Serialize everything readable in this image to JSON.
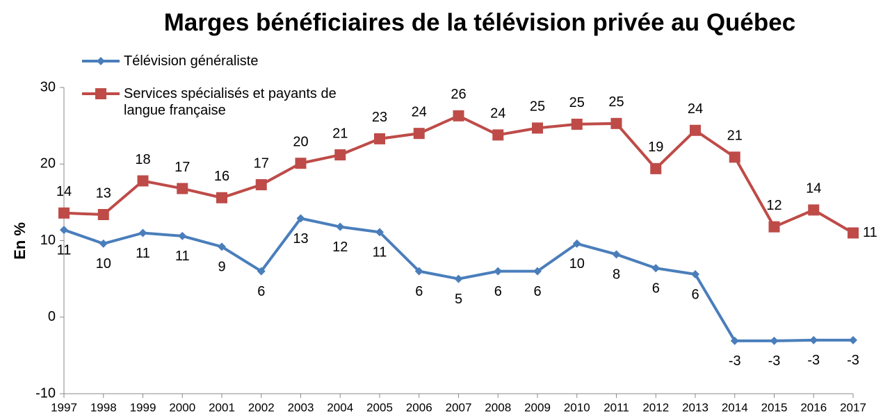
{
  "chart_data": {
    "type": "line",
    "title": "Marges bénéficiaires de la télévision privée au Québec",
    "y_label": "En %",
    "categories": [
      "1997",
      "1998",
      "1999",
      "2000",
      "2001",
      "2002",
      "2003",
      "2004",
      "2005",
      "2006",
      "2007",
      "2008",
      "2009",
      "2010",
      "2011",
      "2012",
      "2013",
      "2014",
      "2015",
      "2016",
      "2017"
    ],
    "series": [
      {
        "name": "Télévision généraliste",
        "color": "#4a7ebb",
        "marker": "diamond",
        "values": [
          11.4,
          9.6,
          11.0,
          10.6,
          9.2,
          6.0,
          12.9,
          11.8,
          11.1,
          6.0,
          5.0,
          6.0,
          6.0,
          9.6,
          8.2,
          6.4,
          5.6,
          -3.1,
          -3.1,
          -3.0,
          -3.0
        ],
        "value_labels": [
          "11",
          "10",
          "11",
          "11",
          "9",
          "6",
          "13",
          "12",
          "11",
          "6",
          "5",
          "6",
          "6",
          "10",
          "8",
          "6",
          "6",
          "-3",
          "-3",
          "-3",
          "-3"
        ]
      },
      {
        "name": "Services spécialisés et payants de langue française",
        "color": "#be4b48",
        "marker": "square",
        "values": [
          13.6,
          13.4,
          17.8,
          16.8,
          15.6,
          17.3,
          20.1,
          21.2,
          23.3,
          24.0,
          26.3,
          23.8,
          24.7,
          25.2,
          25.3,
          19.4,
          24.4,
          20.9,
          11.8,
          14.0,
          11.0
        ],
        "value_labels": [
          "14",
          "13",
          "18",
          "17",
          "16",
          "17",
          "20",
          "21",
          "23",
          "24",
          "26",
          "24",
          "25",
          "25",
          "25",
          "19",
          "24",
          "21",
          "12",
          "14",
          "11"
        ]
      }
    ],
    "ylim": [
      -10,
      30
    ],
    "yticks": [
      -10,
      0,
      10,
      20,
      30
    ]
  }
}
